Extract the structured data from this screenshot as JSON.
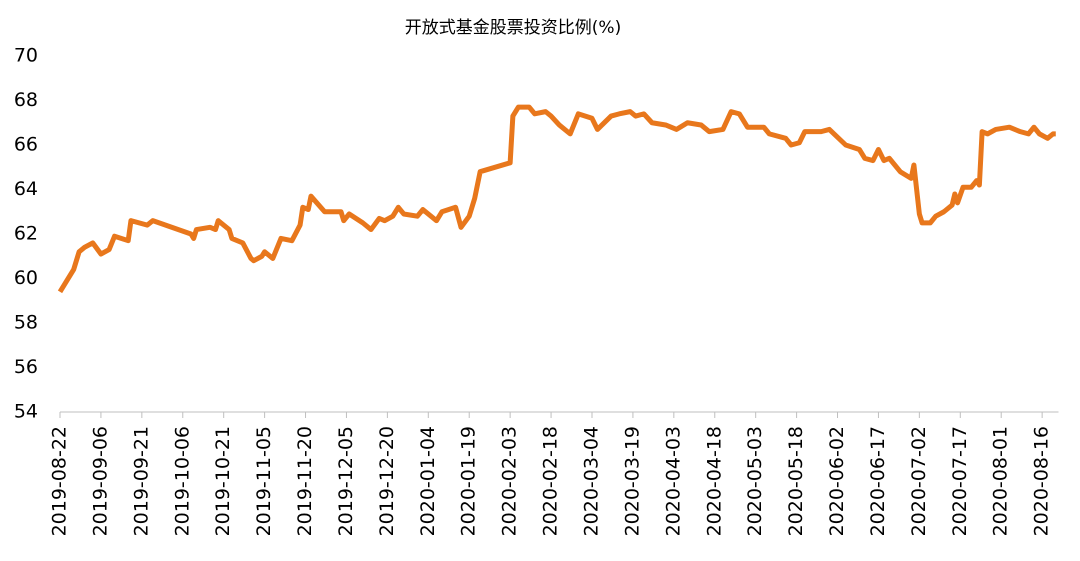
{
  "chart_data": {
    "type": "line",
    "title": "开放式基金股票投资比例(%)",
    "x": [
      "2019-08-22",
      "2019-08-27",
      "2019-08-29",
      "2019-08-31",
      "2019-09-03",
      "2019-09-06",
      "2019-09-09",
      "2019-09-11",
      "2019-09-16",
      "2019-09-17",
      "2019-09-23",
      "2019-09-25",
      "2019-10-09",
      "2019-10-10",
      "2019-10-11",
      "2019-10-16",
      "2019-10-18",
      "2019-10-19",
      "2019-10-23",
      "2019-10-24",
      "2019-10-28",
      "2019-10-31",
      "2019-11-01",
      "2019-11-04",
      "2019-11-05",
      "2019-11-08",
      "2019-11-11",
      "2019-11-15",
      "2019-11-18",
      "2019-11-19",
      "2019-11-21",
      "2019-11-22",
      "2019-11-27",
      "2019-12-03",
      "2019-12-04",
      "2019-12-06",
      "2019-12-11",
      "2019-12-14",
      "2019-12-17",
      "2019-12-19",
      "2019-12-22",
      "2019-12-24",
      "2019-12-26",
      "2019-12-31",
      "2020-01-02",
      "2020-01-07",
      "2020-01-09",
      "2020-01-14",
      "2020-01-16",
      "2020-01-19",
      "2020-01-21",
      "2020-01-23",
      "2020-02-03",
      "2020-02-04",
      "2020-02-06",
      "2020-02-10",
      "2020-02-12",
      "2020-02-16",
      "2020-02-18",
      "2020-02-21",
      "2020-02-25",
      "2020-02-28",
      "2020-03-04",
      "2020-03-06",
      "2020-03-11",
      "2020-03-14",
      "2020-03-18",
      "2020-03-20",
      "2020-03-23",
      "2020-03-26",
      "2020-03-31",
      "2020-04-04",
      "2020-04-08",
      "2020-04-13",
      "2020-04-16",
      "2020-04-21",
      "2020-04-24",
      "2020-04-27",
      "2020-04-30",
      "2020-05-06",
      "2020-05-08",
      "2020-05-14",
      "2020-05-16",
      "2020-05-19",
      "2020-05-21",
      "2020-05-27",
      "2020-05-30",
      "2020-06-05",
      "2020-06-10",
      "2020-06-12",
      "2020-06-15",
      "2020-06-17",
      "2020-06-19",
      "2020-06-21",
      "2020-06-25",
      "2020-06-29",
      "2020-06-30",
      "2020-07-02",
      "2020-07-03",
      "2020-07-06",
      "2020-07-08",
      "2020-07-11",
      "2020-07-14",
      "2020-07-15",
      "2020-07-16",
      "2020-07-18",
      "2020-07-21",
      "2020-07-23",
      "2020-07-24",
      "2020-07-25",
      "2020-07-27",
      "2020-07-30",
      "2020-08-04",
      "2020-08-08",
      "2020-08-11",
      "2020-08-13",
      "2020-08-15",
      "2020-08-18",
      "2020-08-20",
      "2020-08-21"
    ],
    "series": [
      {
        "name": "开放式基金股票投资比例",
        "color": "#e8771c",
        "values": [
          59.4,
          60.4,
          61.2,
          61.4,
          61.6,
          61.1,
          61.3,
          61.9,
          61.7,
          62.6,
          62.4,
          62.6,
          62.0,
          61.8,
          62.2,
          62.3,
          62.2,
          62.6,
          62.2,
          61.8,
          61.6,
          60.9,
          60.8,
          61.0,
          61.2,
          60.9,
          61.8,
          61.7,
          62.4,
          63.2,
          63.1,
          63.7,
          63.0,
          63.0,
          62.6,
          62.9,
          62.5,
          62.2,
          62.7,
          62.6,
          62.8,
          63.2,
          62.9,
          62.8,
          63.1,
          62.6,
          63.0,
          63.2,
          62.3,
          62.8,
          63.6,
          64.8,
          65.2,
          67.3,
          67.7,
          67.7,
          67.4,
          67.5,
          67.3,
          66.9,
          66.5,
          67.4,
          67.2,
          66.7,
          67.3,
          67.4,
          67.5,
          67.3,
          67.4,
          67.0,
          66.9,
          66.7,
          67.0,
          66.9,
          66.6,
          66.7,
          67.5,
          67.4,
          66.8,
          66.8,
          66.5,
          66.3,
          66.0,
          66.1,
          66.6,
          66.6,
          66.7,
          66.0,
          65.8,
          65.4,
          65.3,
          65.8,
          65.3,
          65.4,
          64.8,
          64.5,
          65.1,
          62.9,
          62.5,
          62.5,
          62.8,
          63.0,
          63.3,
          63.8,
          63.4,
          64.1,
          64.1,
          64.4,
          64.2,
          66.6,
          66.5,
          66.7,
          66.8,
          66.6,
          66.5,
          66.8,
          66.5,
          66.3,
          66.5,
          66.5
        ]
      }
    ],
    "xlim": [
      "2019-08-22",
      "2020-08-22"
    ],
    "xticks": [
      "2019-08-22",
      "2019-09-06",
      "2019-09-21",
      "2019-10-06",
      "2019-10-21",
      "2019-11-05",
      "2019-11-20",
      "2019-12-05",
      "2019-12-20",
      "2020-01-04",
      "2020-01-19",
      "2020-02-03",
      "2020-02-18",
      "2020-03-04",
      "2020-03-19",
      "2020-04-03",
      "2020-04-18",
      "2020-05-03",
      "2020-05-18",
      "2020-06-02",
      "2020-06-17",
      "2020-07-02",
      "2020-07-17",
      "2020-08-01",
      "2020-08-16"
    ],
    "ylim": [
      54,
      70
    ],
    "yticks": [
      54,
      56,
      58,
      60,
      62,
      64,
      66,
      68,
      70
    ]
  }
}
